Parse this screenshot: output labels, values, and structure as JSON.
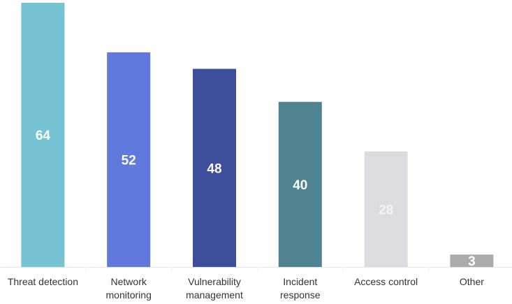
{
  "chart_data": {
    "type": "bar",
    "title": "",
    "xlabel": "",
    "ylabel": "",
    "ylim": [
      0,
      64
    ],
    "grid": false,
    "categories": [
      [
        "Threat detection"
      ],
      [
        "Network",
        "monitoring"
      ],
      [
        "Vulnerability",
        "management"
      ],
      [
        "Incident",
        "response"
      ],
      [
        "Access control"
      ],
      [
        "Other"
      ]
    ],
    "values": [
      64,
      52,
      48,
      40,
      28,
      3
    ],
    "colors": [
      "#76c3d3",
      "#6178dd",
      "#3d4f9b",
      "#4e838f",
      "#dcdbdf",
      "#ababab"
    ],
    "label_colors": [
      "#ffffff",
      "#ffffff",
      "#ffffff",
      "#ffffff",
      "#f4f4f6",
      "#ffffff"
    ]
  }
}
